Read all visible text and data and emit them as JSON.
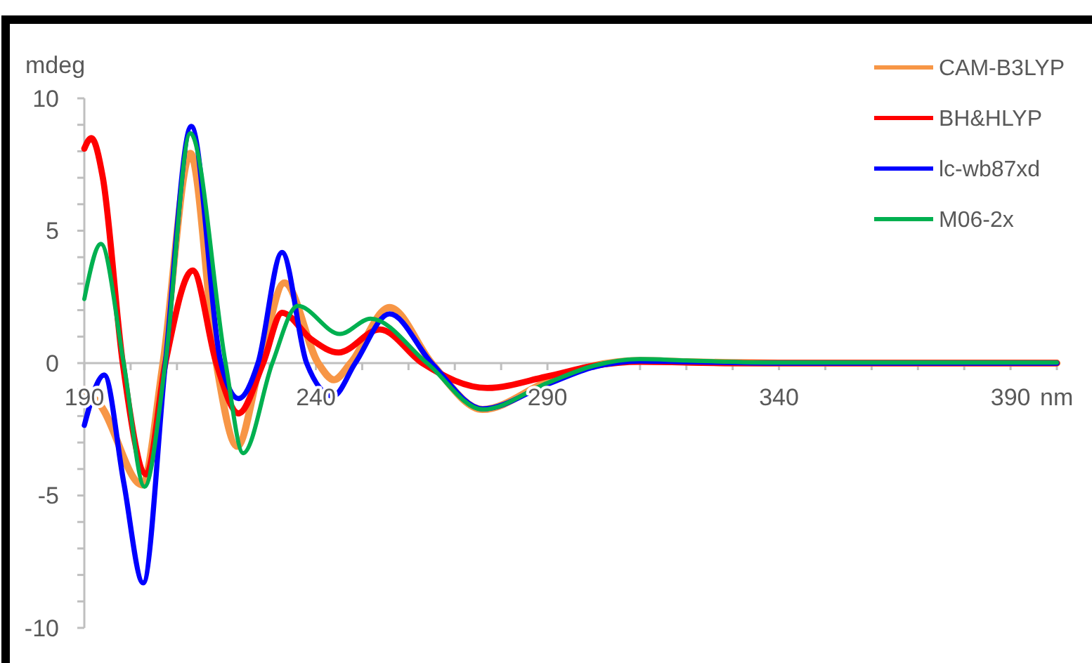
{
  "chart_data": {
    "type": "line",
    "xlabel": "nm",
    "ylabel": "mdeg",
    "xlim": [
      190,
      400
    ],
    "xticks": [
      190,
      {
        "value": 200,
        "label": null
      },
      {
        "value": 210,
        "label": null
      },
      {
        "value": 220,
        "label": null
      },
      {
        "value": 230,
        "label": null
      },
      240,
      {
        "value": 250,
        "label": null
      },
      {
        "value": 260,
        "label": null
      },
      {
        "value": 270,
        "label": null
      },
      {
        "value": 280,
        "label": null
      },
      290,
      {
        "value": 300,
        "label": null
      },
      {
        "value": 310,
        "label": null
      },
      {
        "value": 320,
        "label": null
      },
      {
        "value": 330,
        "label": null
      },
      340,
      {
        "value": 350,
        "label": null
      },
      {
        "value": 360,
        "label": null
      },
      {
        "value": 370,
        "label": null
      },
      {
        "value": 380,
        "label": null
      },
      390,
      {
        "value": 400,
        "label": null
      }
    ],
    "ylim": [
      -10,
      10
    ],
    "yticks": [
      -10,
      {
        "value": -9,
        "label": null
      },
      {
        "value": -8,
        "label": null
      },
      {
        "value": -7,
        "label": null
      },
      {
        "value": -6,
        "label": null
      },
      -5,
      {
        "value": -4,
        "label": null
      },
      {
        "value": -3,
        "label": null
      },
      {
        "value": -2,
        "label": null
      },
      {
        "value": -1,
        "label": null
      },
      0,
      {
        "value": 1,
        "label": null
      },
      {
        "value": 2,
        "label": null
      },
      {
        "value": 3,
        "label": null
      },
      {
        "value": 4,
        "label": null
      },
      5,
      {
        "value": 6,
        "label": null
      },
      {
        "value": 7,
        "label": null
      },
      {
        "value": 8,
        "label": null
      },
      {
        "value": 9,
        "label": null
      },
      10
    ],
    "grid": false,
    "legend": "top right",
    "marker": "none",
    "line_style": "solid",
    "series": [
      {
        "name": "CAM-B3LYP",
        "color": "#f79646",
        "x": [
          190,
          193.5,
          202.5,
          207,
          212.9,
          218.5,
          223,
          228,
          233.2,
          240.5,
          243.9,
          247.5,
          255.9,
          265,
          276,
          290,
          300,
          310,
          320,
          340,
          400
        ],
        "values": [
          -1.0,
          -1.6,
          -4.6,
          0,
          7.92,
          0,
          -3.14,
          0,
          3.03,
          0,
          -0.63,
          0,
          2.1,
          0,
          -1.75,
          -0.7,
          -0.1,
          0.1,
          0.05,
          0,
          0
        ]
      },
      {
        "name": "BH&HLYP",
        "color": "#ff0000",
        "x": [
          190,
          191.5,
          194,
          198.3,
          203.4,
          207.5,
          213.4,
          218.5,
          223.3,
          228.6,
          232.7,
          239,
          244.9,
          253.8,
          263,
          277,
          290,
          300,
          310,
          330,
          400
        ],
        "values": [
          8.1,
          8.5,
          7.0,
          0,
          -4.2,
          0,
          3.5,
          0,
          -1.9,
          0,
          1.9,
          0.9,
          0.4,
          1.27,
          0,
          -0.94,
          -0.5,
          -0.1,
          0.05,
          0,
          0
        ]
      },
      {
        "name": "lc-wb87xd",
        "color": "#0000ff",
        "x": [
          190,
          194.3,
          198.5,
          202.7,
          207.5,
          213.1,
          219.5,
          223.3,
          227.5,
          232.7,
          238,
          243.7,
          248.5,
          255.9,
          265,
          276,
          290,
          300,
          310,
          320,
          340,
          400
        ],
        "values": [
          -2.35,
          -0.45,
          -4.5,
          -8.3,
          0,
          8.94,
          0,
          -1.34,
          0,
          4.18,
          0,
          -1.25,
          0,
          1.86,
          0,
          -1.73,
          -0.8,
          -0.15,
          0.08,
          0.05,
          0,
          0
        ]
      },
      {
        "name": "M06-2x",
        "color": "#00b050",
        "x": [
          190,
          193.6,
          198.5,
          203,
          207.5,
          212.9,
          220.5,
          224.3,
          230.6,
          236.1,
          245.2,
          251.8,
          264,
          276,
          290,
          300,
          310,
          320,
          340,
          400
        ],
        "values": [
          2.42,
          4.5,
          0,
          -4.67,
          0,
          8.68,
          0,
          -3.4,
          0,
          2.16,
          1.1,
          1.68,
          0,
          -1.75,
          -0.75,
          -0.1,
          0.15,
          0.1,
          0.02,
          0.02
        ]
      }
    ]
  }
}
